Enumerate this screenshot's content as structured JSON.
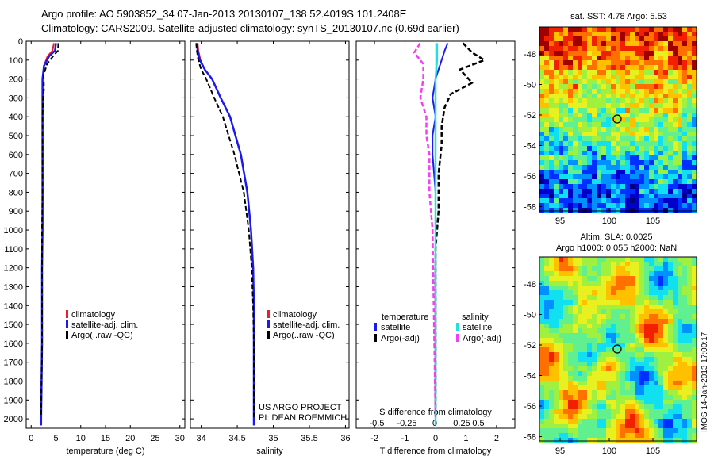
{
  "header": {
    "line1": "Argo profile: AO 5903852_34 07-Jan-2013 20130107_138 52.4019S 101.2408E",
    "line2": "Climatology: CARS2009. Satellite-adjusted climatology: synTS_20130107.nc (0.69d earlier)"
  },
  "colors": {
    "climatology": "#e8202a",
    "satellite": "#1a1aef",
    "argo": "#000000",
    "salinity_satellite": "#20e0e0",
    "salinity_argo": "#f040f0",
    "accent_red": "#e8202a"
  },
  "panels": {
    "temperature": {
      "xlabel": "temperature (deg C)",
      "legend": [
        "climatology",
        "satellite-adj. clim.",
        "Argo(..raw -QC)"
      ]
    },
    "salinity": {
      "xlabel": "salinity",
      "legend": [
        "climatology",
        "satellite-adj. clim.",
        "Argo(..raw -QC)"
      ],
      "credit1": "US ARGO PROJECT",
      "credit2": "PI: DEAN ROEMMICH"
    },
    "difference": {
      "xlabel": "T difference from climatology",
      "top_label": "S difference from climatology",
      "legend_temp_title": "temperature",
      "legend_sal_title": "salinity",
      "legend_temp": [
        "satellite",
        "Argo(-adj)"
      ],
      "legend_sal": [
        "satellite",
        "Argo(-adj)"
      ]
    }
  },
  "maps": {
    "sst_title": "sat. SST: 4.78 Argo: 5.53",
    "sla_title1": "Altim. SLA: 0.0025",
    "sla_title2": "Argo h1000: 0.055 h2000: NaN",
    "watermark": "IMOS 14-Jan-2013 17:00:17",
    "lat_ticks": [
      "-48",
      "-50",
      "-52",
      "-54",
      "-56",
      "-58"
    ],
    "lon_ticks": [
      "95",
      "100",
      "105"
    ]
  },
  "chart_data": [
    {
      "type": "line",
      "title": "",
      "xlabel": "temperature (deg C)",
      "ylabel": "",
      "xlim": [
        -1,
        31
      ],
      "ylim": [
        2050,
        0
      ],
      "xticks": [
        0,
        5,
        10,
        15,
        20,
        25,
        30
      ],
      "yticks": [
        0,
        100,
        200,
        300,
        400,
        500,
        600,
        700,
        800,
        900,
        1000,
        1100,
        1200,
        1300,
        1400,
        1500,
        1600,
        1700,
        1800,
        1900,
        2000
      ],
      "series": [
        {
          "name": "climatology",
          "x": [
            4.6,
            4.3,
            3.3,
            2.6,
            2.3,
            2.3,
            2.3,
            2.3,
            2.3,
            2.3,
            2.2,
            2.2,
            2.2,
            2.1,
            2.0,
            2.0
          ],
          "y": [
            10,
            50,
            80,
            130,
            200,
            300,
            400,
            600,
            800,
            1000,
            1200,
            1400,
            1600,
            1800,
            2000,
            2035
          ]
        },
        {
          "name": "satellite-adj. clim.",
          "x": [
            5.0,
            4.8,
            3.6,
            2.6,
            2.3,
            2.3,
            2.3,
            2.3,
            2.3,
            2.3,
            2.2,
            2.2,
            2.2,
            2.1,
            2.0,
            2.0
          ],
          "y": [
            10,
            50,
            80,
            130,
            200,
            300,
            400,
            600,
            800,
            1000,
            1200,
            1400,
            1600,
            1800,
            2000,
            2035
          ]
        },
        {
          "name": "Argo(..raw -QC)",
          "x": [
            5.5,
            5.4,
            4.4,
            3.2,
            2.5,
            2.6,
            2.4,
            2.3,
            2.3,
            2.3,
            2.2,
            2.2,
            2.2,
            2.1,
            2.0
          ],
          "y": [
            10,
            50,
            80,
            120,
            180,
            250,
            300,
            400,
            600,
            800,
            1000,
            1400,
            1600,
            1800,
            1990
          ]
        }
      ]
    },
    {
      "type": "line",
      "title": "",
      "xlabel": "salinity",
      "ylabel": "",
      "xlim": [
        33.85,
        36.05
      ],
      "ylim": [
        2050,
        0
      ],
      "xticks": [
        34,
        34.5,
        35,
        35.5,
        36
      ],
      "series": [
        {
          "name": "climatology",
          "x": [
            33.95,
            33.96,
            33.99,
            34.05,
            34.15,
            34.27,
            34.4,
            34.55,
            34.64,
            34.69,
            34.72,
            34.73,
            34.73,
            34.73,
            34.73
          ],
          "y": [
            10,
            50,
            100,
            150,
            200,
            300,
            400,
            600,
            800,
            1000,
            1200,
            1400,
            1600,
            1800,
            2035
          ]
        },
        {
          "name": "satellite-adj. clim.",
          "x": [
            33.94,
            33.95,
            33.98,
            34.05,
            34.15,
            34.27,
            34.4,
            34.55,
            34.64,
            34.69,
            34.72,
            34.73,
            34.73,
            34.73,
            34.73
          ],
          "y": [
            10,
            50,
            100,
            150,
            200,
            300,
            400,
            600,
            800,
            1000,
            1200,
            1400,
            1600,
            1800,
            2035
          ]
        },
        {
          "name": "Argo(..raw -QC)",
          "x": [
            33.93,
            33.94,
            33.96,
            34.0,
            34.07,
            34.18,
            34.3,
            34.46,
            34.59,
            34.66,
            34.7,
            34.72,
            34.73,
            34.73
          ],
          "y": [
            10,
            50,
            100,
            150,
            200,
            300,
            400,
            600,
            800,
            1000,
            1200,
            1400,
            1600,
            1990
          ]
        }
      ]
    },
    {
      "type": "line",
      "title": "",
      "xlabel": "T difference from climatology",
      "ylabel": "",
      "xlim": [
        -2.6,
        2.6
      ],
      "ylim": [
        2050,
        0
      ],
      "xticks": [
        -2,
        -1,
        0,
        1,
        2
      ],
      "top_xlabel": "S difference from climatology",
      "top_xticks": [
        "-0.5",
        "-0.25",
        "0",
        "0.25",
        "0.5"
      ],
      "series": [
        {
          "name": "temperature satellite",
          "x": [
            0.4,
            0.3,
            0.2,
            0.1,
            0.0,
            -0.1,
            0.0,
            -0.1,
            -0.1,
            0.0,
            0.0,
            0.0,
            0.0,
            0.0,
            0.0
          ],
          "y": [
            10,
            50,
            100,
            150,
            200,
            300,
            400,
            500,
            600,
            800,
            1000,
            1200,
            1400,
            1600,
            2035
          ]
        },
        {
          "name": "temperature Argo(-adj)",
          "x": [
            0.9,
            1.2,
            1.6,
            0.8,
            1.2,
            0.5,
            0.3,
            0.2,
            0.2,
            0.1,
            0.1,
            0.0,
            0.0,
            0.0,
            0.0
          ],
          "y": [
            10,
            60,
            100,
            150,
            220,
            280,
            350,
            450,
            550,
            700,
            900,
            1100,
            1400,
            1700,
            1990
          ]
        },
        {
          "name": "salinity satellite",
          "x": [
            0.05,
            0.05,
            0.05,
            0.0,
            0.0,
            0.0,
            0.0,
            0.0,
            0.0
          ],
          "y": [
            10,
            50,
            100,
            200,
            400,
            800,
            1200,
            1600,
            2035
          ]
        },
        {
          "name": "salinity Argo(-adj)",
          "x": [
            -0.5,
            -0.7,
            -0.4,
            -0.4,
            -0.5,
            -0.3,
            -0.3,
            -0.2,
            -0.2,
            -0.1,
            0.0
          ],
          "y": [
            10,
            60,
            120,
            200,
            300,
            400,
            500,
            600,
            800,
            1000,
            1990
          ]
        }
      ]
    }
  ]
}
